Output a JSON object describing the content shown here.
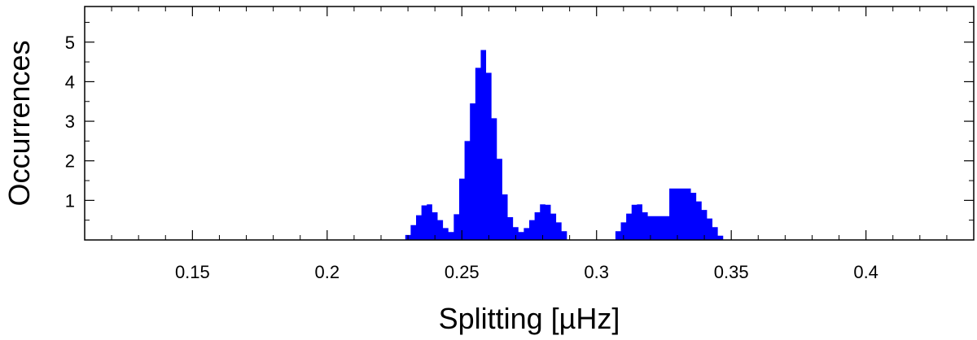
{
  "chart_data": {
    "type": "area",
    "title": "",
    "xlabel": "Splitting [µHz]",
    "ylabel": "Occurrences",
    "xlim": [
      0.11,
      0.44
    ],
    "ylim": [
      0,
      5.9
    ],
    "xticks_major": [
      0.15,
      0.2,
      0.25,
      0.3,
      0.35,
      0.4
    ],
    "xtick_labels": [
      "0.15",
      "0.2",
      "0.25",
      "0.3",
      "0.35",
      "0.4"
    ],
    "yticks_major": [
      1,
      2,
      3,
      4,
      5
    ],
    "ytick_labels": [
      "1",
      "2",
      "3",
      "4",
      "5"
    ],
    "fill_color": "#0000ff",
    "series": [
      {
        "x": [
          0.229,
          0.237,
          0.245,
          0.247,
          0.251,
          0.253,
          0.257,
          0.259,
          0.263,
          0.267,
          0.271,
          0.273,
          0.281,
          0.29,
          0.306,
          0.315,
          0.319,
          0.326,
          0.328,
          0.335,
          0.347
        ],
        "y": [
          0,
          1.0,
          0.2,
          0.2,
          2.0,
          3.0,
          4.8,
          4.8,
          2.5,
          0.7,
          0.2,
          0.2,
          1.0,
          0,
          0,
          1.0,
          0.6,
          0.6,
          1.3,
          1.3,
          0
        ]
      }
    ]
  }
}
